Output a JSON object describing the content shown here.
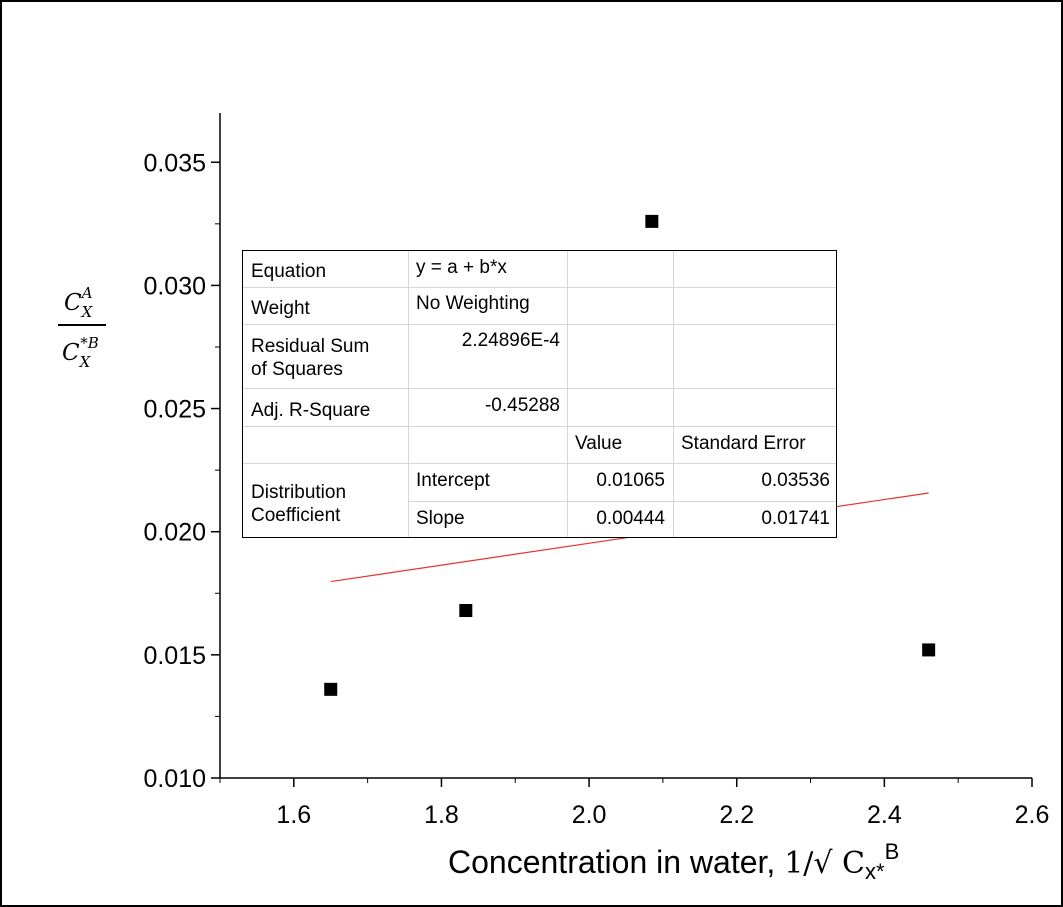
{
  "chart_data": {
    "type": "scatter",
    "x": [
      1.65,
      1.833,
      2.085,
      2.46
    ],
    "y": [
      0.0136,
      0.0168,
      0.0326,
      0.0152
    ],
    "fit_line": {
      "intercept": 0.01065,
      "slope": 0.00444,
      "x_range": [
        1.65,
        2.46
      ]
    },
    "xlim": [
      1.5,
      2.6
    ],
    "ylim": [
      0.01,
      0.037
    ],
    "xticks": [
      "1.6",
      "1.8",
      "2.0",
      "2.2",
      "2.4",
      "2.6"
    ],
    "xtick_values": [
      1.6,
      1.8,
      2.0,
      2.2,
      2.4,
      2.6
    ],
    "yticks": [
      "0.010",
      "0.015",
      "0.020",
      "0.025",
      "0.030",
      "0.035"
    ],
    "ytick_values": [
      0.01,
      0.015,
      0.02,
      0.025,
      0.03,
      0.035
    ],
    "xlabel": "Concentration in water, 1/√ Cx*B",
    "ylabel": "C_X^A / C_X^*B",
    "grid": false,
    "marker_color": "#000000",
    "fit_color": "#e8332f"
  },
  "labels": {
    "xlabel_main": "Concentration in water, ",
    "xlabel_formula": "1/√ C",
    "xlabel_sub": "x*",
    "xlabel_sup": "B",
    "ylabel_num_main": "C",
    "ylabel_num_sub": "X",
    "ylabel_num_sup": "A",
    "ylabel_den_main": "C",
    "ylabel_den_sub": "X",
    "ylabel_den_sup": "*B"
  },
  "stats_table": {
    "equation_label": "Equation",
    "equation_value": "y = a + b*x",
    "weight_label": "Weight",
    "weight_value": "No Weighting",
    "rss_label_line1": "Residual Sum",
    "rss_label_line2": "of Squares",
    "rss_value": "2.24896E-4",
    "adj_r2_label": "Adj. R-Square",
    "adj_r2_value": "-0.45288",
    "header_value": "Value",
    "header_std_error": "Standard Error",
    "param_label_line1": "Distribution",
    "param_label_line2": "Coefficient",
    "intercept_label": "Intercept",
    "intercept_value": "0.01065",
    "intercept_error": "0.03536",
    "slope_label": "Slope",
    "slope_value": "0.00444",
    "slope_error": "0.01741"
  }
}
